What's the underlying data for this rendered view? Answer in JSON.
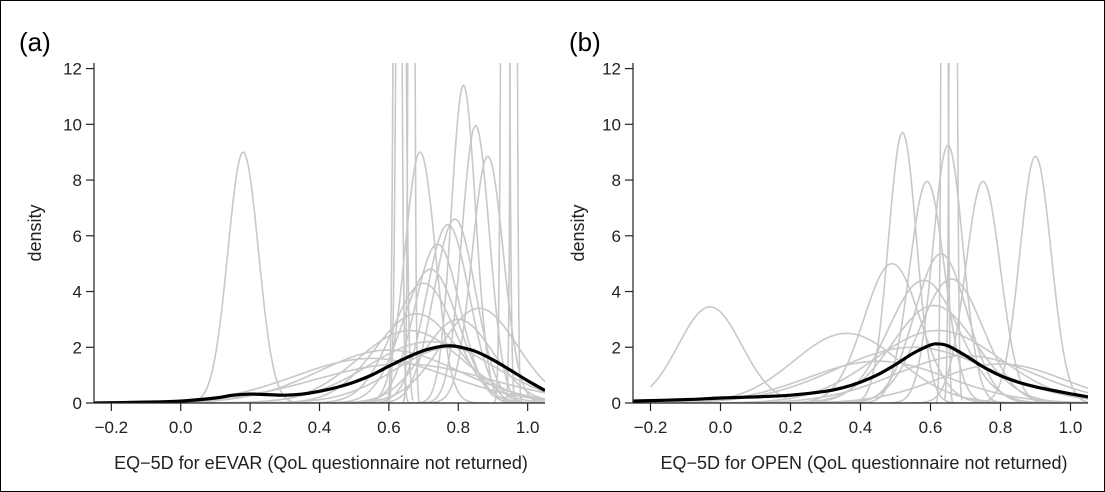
{
  "chart_data": [
    {
      "panel_label": "(a)",
      "type": "line",
      "xlabel": "EQ−5D for eEVAR (QoL questionnaire not returned)",
      "ylabel": "density",
      "xlim": [
        -0.25,
        1.05
      ],
      "ylim": [
        0,
        12.2
      ],
      "x_ticks": [
        -0.2,
        0.0,
        0.2,
        0.4,
        0.6,
        0.8,
        1.0
      ],
      "x_tick_labels": [
        "−0.2",
        "0.0",
        "0.2",
        "0.4",
        "0.6",
        "0.8",
        "1.0"
      ],
      "y_ticks": [
        0,
        2,
        4,
        6,
        8,
        10,
        12
      ],
      "y_tick_labels": [
        "0",
        "2",
        "4",
        "6",
        "8",
        "10",
        "12"
      ],
      "grid": false,
      "colors": {
        "imputation": "#c8c8c8",
        "pooled": "#000000"
      },
      "imputation_curves": [
        {
          "mean": 0.18,
          "sd": 0.044,
          "peak": 9.0,
          "lo": 0.0,
          "hi": 0.38
        },
        {
          "mean": 0.69,
          "sd": 0.044,
          "peak": 9.0
        },
        {
          "mean": 0.815,
          "sd": 0.035,
          "peak": 11.4
        },
        {
          "mean": 0.85,
          "sd": 0.04,
          "peak": 9.95
        },
        {
          "mean": 0.885,
          "sd": 0.045,
          "peak": 8.85
        },
        {
          "mean": 0.79,
          "sd": 0.06,
          "peak": 6.6
        },
        {
          "mean": 0.77,
          "sd": 0.062,
          "peak": 6.4
        },
        {
          "mean": 0.74,
          "sd": 0.065,
          "peak": 5.7
        },
        {
          "mean": 0.72,
          "sd": 0.08,
          "peak": 4.8
        },
        {
          "mean": 0.7,
          "sd": 0.09,
          "peak": 4.3
        },
        {
          "mean": 0.68,
          "sd": 0.12,
          "peak": 3.2
        },
        {
          "mean": 0.86,
          "sd": 0.11,
          "peak": 3.4
        },
        {
          "mean": 0.66,
          "sd": 0.15,
          "peak": 2.6
        },
        {
          "mean": 0.72,
          "sd": 0.18,
          "peak": 2.2
        },
        {
          "mean": 0.6,
          "sd": 0.2,
          "peak": 1.9
        },
        {
          "mean": 0.78,
          "sd": 0.16,
          "peak": 2.0
        },
        {
          "mean": 0.55,
          "sd": 0.22,
          "peak": 1.6
        },
        {
          "mean": 0.64,
          "sd": 0.25,
          "peak": 1.4
        },
        {
          "mean": 0.8,
          "sd": 0.1,
          "peak": 3.0
        },
        {
          "mean": 0.625,
          "sd": 0.008,
          "peak": 50,
          "lo": 0.59,
          "hi": 0.66
        },
        {
          "mean": 0.635,
          "sd": 0.01,
          "peak": 40,
          "lo": 0.6,
          "hi": 0.67
        },
        {
          "mean": 0.665,
          "sd": 0.006,
          "peak": 60,
          "lo": 0.64,
          "hi": 0.69
        },
        {
          "mean": 0.935,
          "sd": 0.008,
          "peak": 50,
          "lo": 0.9,
          "hi": 0.97
        },
        {
          "mean": 0.96,
          "sd": 0.006,
          "peak": 60,
          "lo": 0.93,
          "hi": 0.99
        }
      ],
      "pooled_curve": {
        "x": [
          -0.25,
          -0.1,
          0.0,
          0.1,
          0.15,
          0.2,
          0.25,
          0.3,
          0.35,
          0.4,
          0.45,
          0.5,
          0.55,
          0.6,
          0.65,
          0.7,
          0.75,
          0.78,
          0.8,
          0.85,
          0.9,
          0.95,
          1.0,
          1.05
        ],
        "y": [
          0.0,
          0.03,
          0.07,
          0.18,
          0.28,
          0.32,
          0.3,
          0.28,
          0.32,
          0.42,
          0.56,
          0.75,
          1.0,
          1.32,
          1.62,
          1.88,
          2.03,
          2.05,
          2.02,
          1.85,
          1.55,
          1.18,
          0.8,
          0.45
        ]
      }
    },
    {
      "panel_label": "(b)",
      "type": "line",
      "xlabel": "EQ−5D for OPEN (QoL questionnaire not returned)",
      "ylabel": "density",
      "xlim": [
        -0.25,
        1.05
      ],
      "ylim": [
        0,
        12.2
      ],
      "x_ticks": [
        -0.2,
        0.0,
        0.2,
        0.4,
        0.6,
        0.8,
        1.0
      ],
      "x_tick_labels": [
        "−0.2",
        "0.0",
        "0.2",
        "0.4",
        "0.6",
        "0.8",
        "1.0"
      ],
      "y_ticks": [
        0,
        2,
        4,
        6,
        8,
        10,
        12
      ],
      "y_tick_labels": [
        "0",
        "2",
        "4",
        "6",
        "8",
        "10",
        "12"
      ],
      "grid": false,
      "colors": {
        "imputation": "#c8c8c8",
        "pooled": "#000000"
      },
      "imputation_curves": [
        {
          "mean": -0.03,
          "sd": 0.09,
          "peak": 3.45,
          "lo": -0.2,
          "hi": 0.2
        },
        {
          "mean": 0.52,
          "sd": 0.04,
          "peak": 9.7
        },
        {
          "mean": 0.59,
          "sd": 0.05,
          "peak": 7.95
        },
        {
          "mean": 0.65,
          "sd": 0.043,
          "peak": 9.25
        },
        {
          "mean": 0.75,
          "sd": 0.05,
          "peak": 7.95
        },
        {
          "mean": 0.9,
          "sd": 0.045,
          "peak": 8.85
        },
        {
          "mean": 0.49,
          "sd": 0.08,
          "peak": 5.0
        },
        {
          "mean": 0.63,
          "sd": 0.075,
          "peak": 5.35
        },
        {
          "mean": 0.66,
          "sd": 0.09,
          "peak": 4.45
        },
        {
          "mean": 0.58,
          "sd": 0.1,
          "peak": 4.4
        },
        {
          "mean": 0.61,
          "sd": 0.12,
          "peak": 3.5
        },
        {
          "mean": 0.36,
          "sd": 0.15,
          "peak": 2.5
        },
        {
          "mean": 0.62,
          "sd": 0.18,
          "peak": 2.6
        },
        {
          "mean": 0.55,
          "sd": 0.22,
          "peak": 2.0
        },
        {
          "mean": 0.7,
          "sd": 0.2,
          "peak": 1.7
        },
        {
          "mean": 0.45,
          "sd": 0.2,
          "peak": 1.5
        },
        {
          "mean": 0.8,
          "sd": 0.18,
          "peak": 1.4
        },
        {
          "mean": 0.64,
          "sd": 0.006,
          "peak": 60,
          "lo": 0.615,
          "hi": 0.665
        },
        {
          "mean": 0.665,
          "sd": 0.007,
          "peak": 55,
          "lo": 0.64,
          "hi": 0.69
        }
      ],
      "pooled_curve": {
        "x": [
          -0.25,
          -0.1,
          0.0,
          0.1,
          0.2,
          0.3,
          0.35,
          0.4,
          0.45,
          0.5,
          0.55,
          0.6,
          0.62,
          0.65,
          0.7,
          0.75,
          0.8,
          0.85,
          0.9,
          0.95,
          1.0,
          1.05
        ],
        "y": [
          0.07,
          0.12,
          0.18,
          0.22,
          0.28,
          0.42,
          0.55,
          0.75,
          1.02,
          1.38,
          1.78,
          2.08,
          2.12,
          2.05,
          1.7,
          1.3,
          0.98,
          0.75,
          0.58,
          0.45,
          0.33,
          0.22
        ]
      }
    }
  ]
}
